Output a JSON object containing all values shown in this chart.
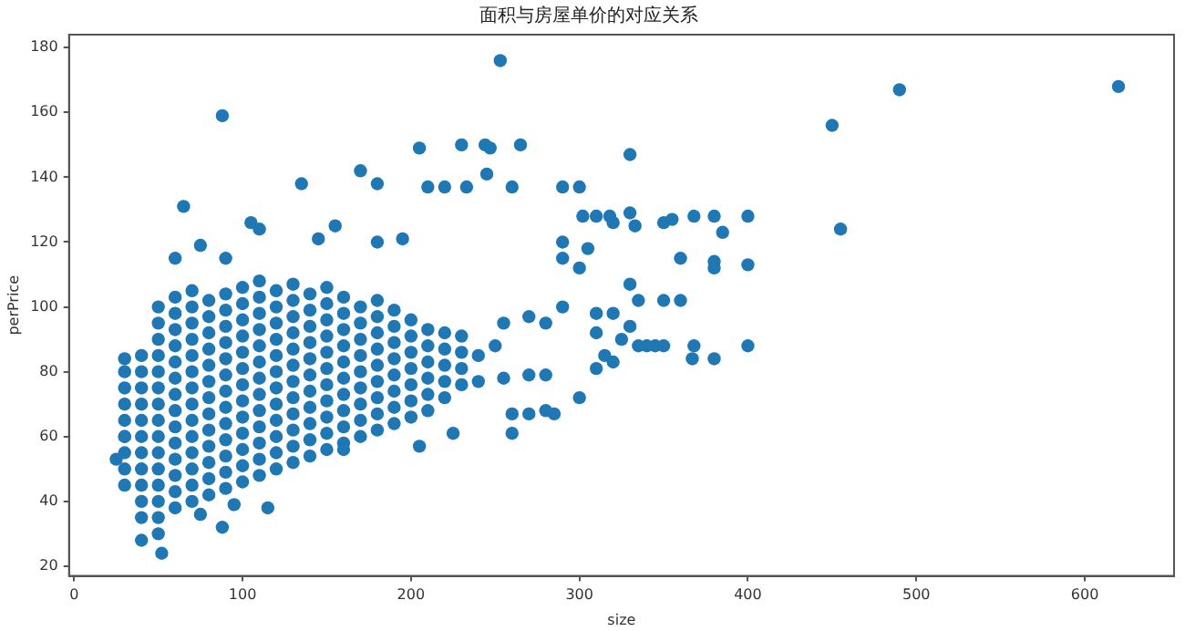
{
  "chart_data": {
    "type": "scatter",
    "title": "面积与房屋单价的对应关系",
    "xlabel": "size",
    "ylabel": "perPrice",
    "xlim": [
      -3,
      653
    ],
    "ylim": [
      17,
      184
    ],
    "xticks": [
      0,
      100,
      200,
      300,
      400,
      500,
      600
    ],
    "yticks": [
      20,
      40,
      60,
      80,
      100,
      120,
      140,
      160,
      180
    ],
    "grid": false,
    "legend": false,
    "marker": "circle",
    "series": [
      {
        "color": "#1f77b4",
        "x": [
          30,
          30,
          30,
          30,
          30,
          30,
          30,
          30,
          30,
          40,
          40,
          40,
          40,
          40,
          40,
          40,
          40,
          40,
          40,
          40,
          50,
          50,
          50,
          50,
          50,
          50,
          50,
          50,
          50,
          50,
          50,
          50,
          50,
          50,
          50,
          60,
          60,
          60,
          60,
          60,
          60,
          60,
          60,
          60,
          60,
          60,
          60,
          60,
          60,
          70,
          70,
          70,
          70,
          70,
          70,
          70,
          70,
          70,
          70,
          70,
          70,
          70,
          70,
          80,
          80,
          80,
          80,
          80,
          80,
          80,
          80,
          80,
          80,
          80,
          80,
          80,
          90,
          90,
          90,
          90,
          90,
          90,
          90,
          90,
          90,
          90,
          90,
          90,
          90,
          100,
          100,
          100,
          100,
          100,
          100,
          100,
          100,
          100,
          100,
          100,
          100,
          100,
          110,
          110,
          110,
          110,
          110,
          110,
          110,
          110,
          110,
          110,
          110,
          110,
          110,
          120,
          120,
          120,
          120,
          120,
          120,
          120,
          120,
          120,
          120,
          120,
          120,
          130,
          130,
          130,
          130,
          130,
          130,
          130,
          130,
          130,
          130,
          130,
          130,
          140,
          140,
          140,
          140,
          140,
          140,
          140,
          140,
          140,
          140,
          140,
          150,
          150,
          150,
          150,
          150,
          150,
          150,
          150,
          150,
          150,
          150,
          160,
          160,
          160,
          160,
          160,
          160,
          160,
          160,
          160,
          160,
          170,
          170,
          170,
          170,
          170,
          170,
          170,
          170,
          170,
          180,
          180,
          180,
          180,
          180,
          180,
          180,
          180,
          180,
          190,
          190,
          190,
          190,
          190,
          190,
          190,
          190,
          200,
          200,
          200,
          200,
          200,
          200,
          200,
          210,
          210,
          210,
          210,
          210,
          210,
          220,
          220,
          220,
          220,
          220,
          230,
          230,
          230,
          230,
          88,
          253,
          65,
          205,
          230,
          244,
          247,
          265,
          170,
          180,
          135,
          210,
          220,
          233,
          260,
          290,
          300,
          245,
          302,
          310,
          330,
          318,
          330,
          333,
          320,
          350,
          355,
          368,
          380,
          400,
          385,
          360,
          380,
          380,
          400,
          330,
          335,
          350,
          360,
          310,
          320,
          330,
          325,
          335,
          340,
          345,
          350,
          368,
          400,
          367,
          380,
          315,
          320,
          310,
          300,
          450,
          490,
          620,
          455,
          25,
          30,
          40,
          52,
          88,
          95,
          115,
          75,
          160,
          205,
          225,
          260,
          270,
          285,
          280,
          290,
          290,
          300,
          305,
          195,
          180,
          155,
          145,
          105,
          110,
          90,
          75,
          60,
          290,
          280,
          270,
          255,
          250,
          240,
          255,
          270,
          280,
          260,
          240,
          310
        ],
        "values": [
          45,
          50,
          55,
          60,
          65,
          70,
          75,
          80,
          84,
          35,
          40,
          45,
          50,
          55,
          60,
          65,
          70,
          75,
          80,
          85,
          30,
          35,
          40,
          45,
          50,
          55,
          60,
          65,
          70,
          75,
          80,
          85,
          90,
          95,
          100,
          38,
          43,
          48,
          53,
          58,
          63,
          68,
          73,
          78,
          83,
          88,
          93,
          98,
          103,
          40,
          45,
          50,
          55,
          60,
          65,
          70,
          75,
          80,
          85,
          90,
          95,
          100,
          105,
          42,
          47,
          52,
          57,
          62,
          67,
          72,
          77,
          82,
          87,
          92,
          97,
          102,
          44,
          49,
          54,
          59,
          64,
          69,
          74,
          79,
          84,
          89,
          94,
          99,
          104,
          46,
          51,
          56,
          61,
          66,
          71,
          76,
          81,
          86,
          91,
          96,
          101,
          106,
          48,
          53,
          58,
          63,
          68,
          73,
          78,
          83,
          88,
          93,
          98,
          103,
          108,
          50,
          55,
          60,
          65,
          70,
          75,
          80,
          85,
          90,
          95,
          100,
          105,
          52,
          57,
          62,
          67,
          72,
          77,
          82,
          87,
          92,
          97,
          102,
          107,
          54,
          59,
          64,
          69,
          74,
          79,
          84,
          89,
          94,
          99,
          104,
          56,
          61,
          66,
          71,
          76,
          81,
          86,
          91,
          96,
          101,
          106,
          58,
          63,
          68,
          73,
          78,
          83,
          88,
          93,
          98,
          103,
          60,
          65,
          70,
          75,
          80,
          85,
          90,
          95,
          100,
          62,
          67,
          72,
          77,
          82,
          87,
          92,
          97,
          102,
          64,
          69,
          74,
          79,
          84,
          89,
          94,
          99,
          66,
          71,
          76,
          81,
          86,
          91,
          96,
          68,
          73,
          78,
          83,
          88,
          93,
          72,
          77,
          82,
          87,
          92,
          76,
          81,
          86,
          91,
          159,
          176,
          131,
          149,
          150,
          150,
          149,
          150,
          142,
          138,
          138,
          137,
          137,
          137,
          137,
          137,
          137,
          141,
          128,
          128,
          147,
          128,
          129,
          125,
          126,
          126,
          127,
          128,
          128,
          128,
          123,
          115,
          114,
          112,
          113,
          107,
          102,
          102,
          102,
          98,
          98,
          94,
          90,
          88,
          88,
          88,
          88,
          88,
          88,
          84,
          84,
          85,
          83,
          81,
          72,
          156,
          167,
          168,
          124,
          53,
          60,
          28,
          24,
          32,
          39,
          38,
          36,
          56,
          57,
          61,
          61,
          67,
          67,
          68,
          115,
          120,
          112,
          118,
          121,
          120,
          125,
          121,
          126,
          124,
          115,
          119,
          115,
          100,
          95,
          97,
          95,
          88,
          85,
          78,
          79,
          79,
          67,
          77,
          92
        ]
      }
    ]
  }
}
